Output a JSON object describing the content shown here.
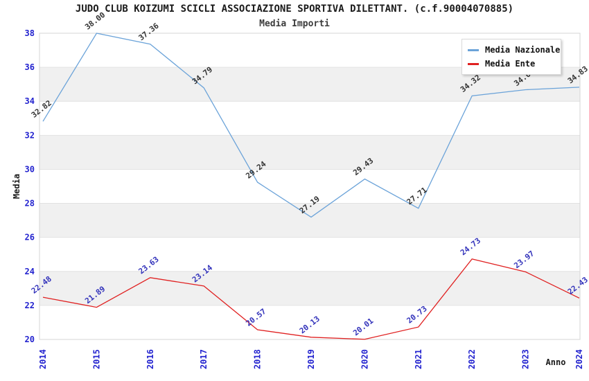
{
  "header": {
    "title": "JUDO CLUB KOIZUMI SCICLI ASSOCIAZIONE SPORTIVA DILETTANT. (c.f.90004070885)",
    "subtitle": "Media Importi"
  },
  "chart_data": {
    "type": "line",
    "x": [
      "2014",
      "2015",
      "2016",
      "2017",
      "2018",
      "2019",
      "2020",
      "2021",
      "2022",
      "2023",
      "2024"
    ],
    "series": [
      {
        "name": "Media Nazionale",
        "color": "#6ba3d9",
        "label_color": "#333333",
        "values": [
          32.82,
          38.0,
          37.36,
          34.79,
          29.24,
          27.19,
          29.43,
          27.71,
          34.32,
          34.68,
          34.83
        ]
      },
      {
        "name": "Media Ente",
        "color": "#e02020",
        "label_color": "#3333bb",
        "values": [
          22.48,
          21.89,
          23.63,
          23.14,
          20.57,
          20.13,
          20.01,
          20.73,
          24.73,
          23.97,
          22.43
        ]
      }
    ],
    "xlabel": "Anno",
    "ylabel": "Media",
    "ylim": [
      20,
      38
    ],
    "yticks": [
      20,
      22,
      24,
      26,
      28,
      30,
      32,
      34,
      36,
      38
    ],
    "ytick_step": 2,
    "legend_position": "top-right",
    "grid": true,
    "band_colors": [
      "#ffffff",
      "#f0f0f0"
    ],
    "grid_color": "#e2e2e2",
    "border_color": "#d5d5d5",
    "tick_color": "#2323cf"
  }
}
